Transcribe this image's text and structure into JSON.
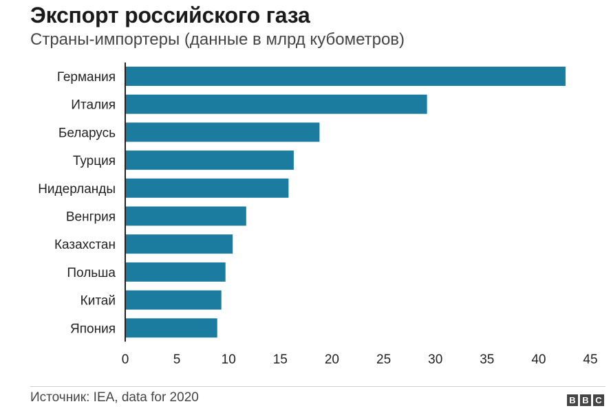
{
  "chart_data": {
    "type": "bar",
    "orientation": "horizontal",
    "title": "Экспорт российского газа",
    "subtitle": "Страны-импортеры (данные в млрд кубометров)",
    "categories": [
      "Германия",
      "Италия",
      "Беларусь",
      "Турция",
      "Нидерланды",
      "Венгрия",
      "Казахстан",
      "Польша",
      "Китай",
      "Япония"
    ],
    "values": [
      42.6,
      29.2,
      18.8,
      16.3,
      15.8,
      11.7,
      10.4,
      9.7,
      9.3,
      8.9
    ],
    "xlim": [
      0,
      45
    ],
    "xticks": [
      "0",
      "5",
      "10",
      "15",
      "20",
      "25",
      "30",
      "35",
      "40",
      "45"
    ],
    "xlabel": "",
    "ylabel": "",
    "grid": false,
    "bar_color": "#1b7ca0"
  },
  "footer": {
    "source": "Источник: IEA, data for 2020",
    "logo_letters": [
      "B",
      "B",
      "C"
    ]
  }
}
